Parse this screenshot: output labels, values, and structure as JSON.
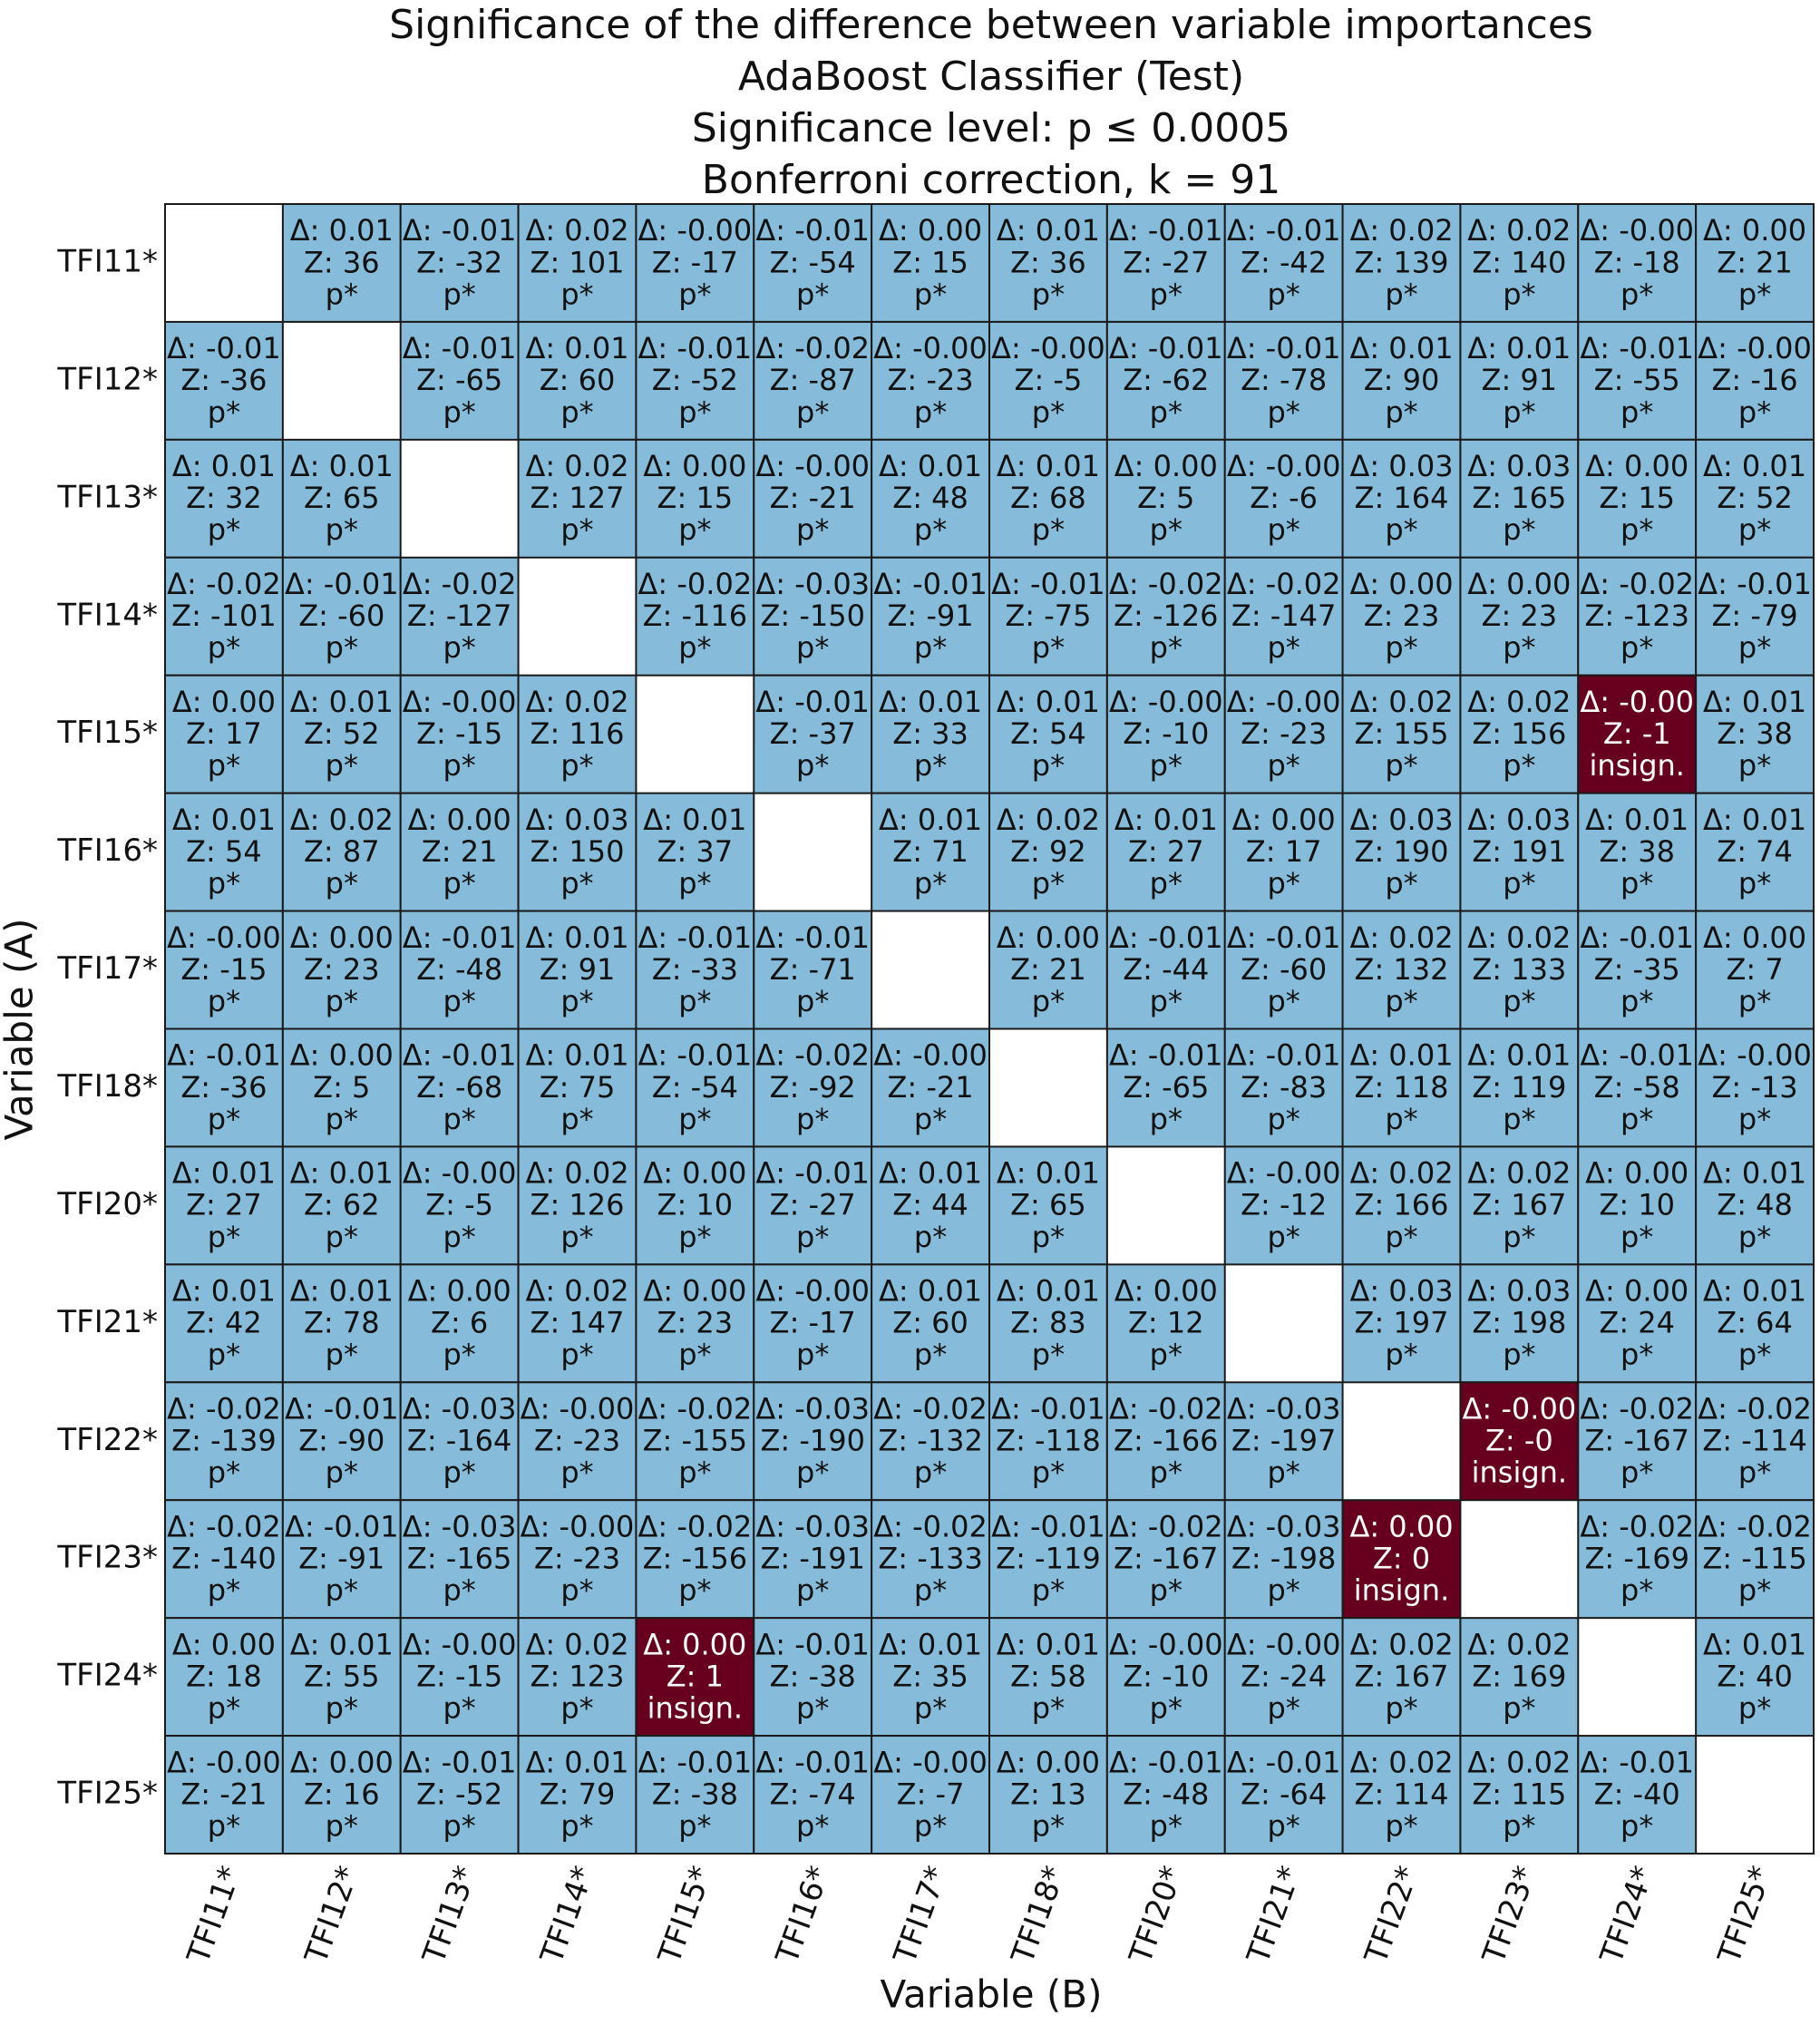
{
  "chart_data": {
    "type": "matrix",
    "title": [
      "Significance of the difference between variable importances",
      "AdaBoost Classifier (Test)",
      "Significance level: p ≤  0.0005",
      "Bonferroni correction, k = 91"
    ],
    "x_label": "Variable (B)",
    "y_label": "Variable (A)",
    "significant_color": "#86bcd9",
    "insignificant_color": "#67001f",
    "rows": [
      "TFI11*",
      "TFI12*",
      "TFI13*",
      "TFI14*",
      "TFI15*",
      "TFI16*",
      "TFI17*",
      "TFI18*",
      "TFI20*",
      "TFI21*",
      "TFI22*",
      "TFI23*",
      "TFI24*",
      "TFI25*"
    ],
    "columns": [
      "TFI11*",
      "TFI12*",
      "TFI13*",
      "TFI14*",
      "TFI15*",
      "TFI16*",
      "TFI17*",
      "TFI18*",
      "TFI20*",
      "TFI21*",
      "TFI22*",
      "TFI23*",
      "TFI24*",
      "TFI25*"
    ],
    "cells": [
      [
        null,
        [
          "Δ: 0.01",
          "Z: 36",
          "p*",
          true
        ],
        [
          "Δ: -0.01",
          "Z: -32",
          "p*",
          true
        ],
        [
          "Δ: 0.02",
          "Z: 101",
          "p*",
          true
        ],
        [
          "Δ: -0.00",
          "Z: -17",
          "p*",
          true
        ],
        [
          "Δ: -0.01",
          "Z: -54",
          "p*",
          true
        ],
        [
          "Δ: 0.00",
          "Z: 15",
          "p*",
          true
        ],
        [
          "Δ: 0.01",
          "Z: 36",
          "p*",
          true
        ],
        [
          "Δ: -0.01",
          "Z: -27",
          "p*",
          true
        ],
        [
          "Δ: -0.01",
          "Z: -42",
          "p*",
          true
        ],
        [
          "Δ: 0.02",
          "Z: 139",
          "p*",
          true
        ],
        [
          "Δ: 0.02",
          "Z: 140",
          "p*",
          true
        ],
        [
          "Δ: -0.00",
          "Z: -18",
          "p*",
          true
        ],
        [
          "Δ: 0.00",
          "Z: 21",
          "p*",
          true
        ]
      ],
      [
        [
          "Δ: -0.01",
          "Z: -36",
          "p*",
          true
        ],
        null,
        [
          "Δ: -0.01",
          "Z: -65",
          "p*",
          true
        ],
        [
          "Δ: 0.01",
          "Z: 60",
          "p*",
          true
        ],
        [
          "Δ: -0.01",
          "Z: -52",
          "p*",
          true
        ],
        [
          "Δ: -0.02",
          "Z: -87",
          "p*",
          true
        ],
        [
          "Δ: -0.00",
          "Z: -23",
          "p*",
          true
        ],
        [
          "Δ: -0.00",
          "Z: -5",
          "p*",
          true
        ],
        [
          "Δ: -0.01",
          "Z: -62",
          "p*",
          true
        ],
        [
          "Δ: -0.01",
          "Z: -78",
          "p*",
          true
        ],
        [
          "Δ: 0.01",
          "Z: 90",
          "p*",
          true
        ],
        [
          "Δ: 0.01",
          "Z: 91",
          "p*",
          true
        ],
        [
          "Δ: -0.01",
          "Z: -55",
          "p*",
          true
        ],
        [
          "Δ: -0.00",
          "Z: -16",
          "p*",
          true
        ]
      ],
      [
        [
          "Δ: 0.01",
          "Z: 32",
          "p*",
          true
        ],
        [
          "Δ: 0.01",
          "Z: 65",
          "p*",
          true
        ],
        null,
        [
          "Δ: 0.02",
          "Z: 127",
          "p*",
          true
        ],
        [
          "Δ: 0.00",
          "Z: 15",
          "p*",
          true
        ],
        [
          "Δ: -0.00",
          "Z: -21",
          "p*",
          true
        ],
        [
          "Δ: 0.01",
          "Z: 48",
          "p*",
          true
        ],
        [
          "Δ: 0.01",
          "Z: 68",
          "p*",
          true
        ],
        [
          "Δ: 0.00",
          "Z: 5",
          "p*",
          true
        ],
        [
          "Δ: -0.00",
          "Z: -6",
          "p*",
          true
        ],
        [
          "Δ: 0.03",
          "Z: 164",
          "p*",
          true
        ],
        [
          "Δ: 0.03",
          "Z: 165",
          "p*",
          true
        ],
        [
          "Δ: 0.00",
          "Z: 15",
          "p*",
          true
        ],
        [
          "Δ: 0.01",
          "Z: 52",
          "p*",
          true
        ]
      ],
      [
        [
          "Δ: -0.02",
          "Z: -101",
          "p*",
          true
        ],
        [
          "Δ: -0.01",
          "Z: -60",
          "p*",
          true
        ],
        [
          "Δ: -0.02",
          "Z: -127",
          "p*",
          true
        ],
        null,
        [
          "Δ: -0.02",
          "Z: -116",
          "p*",
          true
        ],
        [
          "Δ: -0.03",
          "Z: -150",
          "p*",
          true
        ],
        [
          "Δ: -0.01",
          "Z: -91",
          "p*",
          true
        ],
        [
          "Δ: -0.01",
          "Z: -75",
          "p*",
          true
        ],
        [
          "Δ: -0.02",
          "Z: -126",
          "p*",
          true
        ],
        [
          "Δ: -0.02",
          "Z: -147",
          "p*",
          true
        ],
        [
          "Δ: 0.00",
          "Z: 23",
          "p*",
          true
        ],
        [
          "Δ: 0.00",
          "Z: 23",
          "p*",
          true
        ],
        [
          "Δ: -0.02",
          "Z: -123",
          "p*",
          true
        ],
        [
          "Δ: -0.01",
          "Z: -79",
          "p*",
          true
        ]
      ],
      [
        [
          "Δ: 0.00",
          "Z: 17",
          "p*",
          true
        ],
        [
          "Δ: 0.01",
          "Z: 52",
          "p*",
          true
        ],
        [
          "Δ: -0.00",
          "Z: -15",
          "p*",
          true
        ],
        [
          "Δ: 0.02",
          "Z: 116",
          "p*",
          true
        ],
        null,
        [
          "Δ: -0.01",
          "Z: -37",
          "p*",
          true
        ],
        [
          "Δ: 0.01",
          "Z: 33",
          "p*",
          true
        ],
        [
          "Δ: 0.01",
          "Z: 54",
          "p*",
          true
        ],
        [
          "Δ: -0.00",
          "Z: -10",
          "p*",
          true
        ],
        [
          "Δ: -0.00",
          "Z: -23",
          "p*",
          true
        ],
        [
          "Δ: 0.02",
          "Z: 155",
          "p*",
          true
        ],
        [
          "Δ: 0.02",
          "Z: 156",
          "p*",
          true
        ],
        [
          "Δ: -0.00",
          "Z: -1",
          "insign.",
          false
        ],
        [
          "Δ: 0.01",
          "Z: 38",
          "p*",
          true
        ]
      ],
      [
        [
          "Δ: 0.01",
          "Z: 54",
          "p*",
          true
        ],
        [
          "Δ: 0.02",
          "Z: 87",
          "p*",
          true
        ],
        [
          "Δ: 0.00",
          "Z: 21",
          "p*",
          true
        ],
        [
          "Δ: 0.03",
          "Z: 150",
          "p*",
          true
        ],
        [
          "Δ: 0.01",
          "Z: 37",
          "p*",
          true
        ],
        null,
        [
          "Δ: 0.01",
          "Z: 71",
          "p*",
          true
        ],
        [
          "Δ: 0.02",
          "Z: 92",
          "p*",
          true
        ],
        [
          "Δ: 0.01",
          "Z: 27",
          "p*",
          true
        ],
        [
          "Δ: 0.00",
          "Z: 17",
          "p*",
          true
        ],
        [
          "Δ: 0.03",
          "Z: 190",
          "p*",
          true
        ],
        [
          "Δ: 0.03",
          "Z: 191",
          "p*",
          true
        ],
        [
          "Δ: 0.01",
          "Z: 38",
          "p*",
          true
        ],
        [
          "Δ: 0.01",
          "Z: 74",
          "p*",
          true
        ]
      ],
      [
        [
          "Δ: -0.00",
          "Z: -15",
          "p*",
          true
        ],
        [
          "Δ: 0.00",
          "Z: 23",
          "p*",
          true
        ],
        [
          "Δ: -0.01",
          "Z: -48",
          "p*",
          true
        ],
        [
          "Δ: 0.01",
          "Z: 91",
          "p*",
          true
        ],
        [
          "Δ: -0.01",
          "Z: -33",
          "p*",
          true
        ],
        [
          "Δ: -0.01",
          "Z: -71",
          "p*",
          true
        ],
        null,
        [
          "Δ: 0.00",
          "Z: 21",
          "p*",
          true
        ],
        [
          "Δ: -0.01",
          "Z: -44",
          "p*",
          true
        ],
        [
          "Δ: -0.01",
          "Z: -60",
          "p*",
          true
        ],
        [
          "Δ: 0.02",
          "Z: 132",
          "p*",
          true
        ],
        [
          "Δ: 0.02",
          "Z: 133",
          "p*",
          true
        ],
        [
          "Δ: -0.01",
          "Z: -35",
          "p*",
          true
        ],
        [
          "Δ: 0.00",
          "Z: 7",
          "p*",
          true
        ]
      ],
      [
        [
          "Δ: -0.01",
          "Z: -36",
          "p*",
          true
        ],
        [
          "Δ: 0.00",
          "Z: 5",
          "p*",
          true
        ],
        [
          "Δ: -0.01",
          "Z: -68",
          "p*",
          true
        ],
        [
          "Δ: 0.01",
          "Z: 75",
          "p*",
          true
        ],
        [
          "Δ: -0.01",
          "Z: -54",
          "p*",
          true
        ],
        [
          "Δ: -0.02",
          "Z: -92",
          "p*",
          true
        ],
        [
          "Δ: -0.00",
          "Z: -21",
          "p*",
          true
        ],
        null,
        [
          "Δ: -0.01",
          "Z: -65",
          "p*",
          true
        ],
        [
          "Δ: -0.01",
          "Z: -83",
          "p*",
          true
        ],
        [
          "Δ: 0.01",
          "Z: 118",
          "p*",
          true
        ],
        [
          "Δ: 0.01",
          "Z: 119",
          "p*",
          true
        ],
        [
          "Δ: -0.01",
          "Z: -58",
          "p*",
          true
        ],
        [
          "Δ: -0.00",
          "Z: -13",
          "p*",
          true
        ]
      ],
      [
        [
          "Δ: 0.01",
          "Z: 27",
          "p*",
          true
        ],
        [
          "Δ: 0.01",
          "Z: 62",
          "p*",
          true
        ],
        [
          "Δ: -0.00",
          "Z: -5",
          "p*",
          true
        ],
        [
          "Δ: 0.02",
          "Z: 126",
          "p*",
          true
        ],
        [
          "Δ: 0.00",
          "Z: 10",
          "p*",
          true
        ],
        [
          "Δ: -0.01",
          "Z: -27",
          "p*",
          true
        ],
        [
          "Δ: 0.01",
          "Z: 44",
          "p*",
          true
        ],
        [
          "Δ: 0.01",
          "Z: 65",
          "p*",
          true
        ],
        null,
        [
          "Δ: -0.00",
          "Z: -12",
          "p*",
          true
        ],
        [
          "Δ: 0.02",
          "Z: 166",
          "p*",
          true
        ],
        [
          "Δ: 0.02",
          "Z: 167",
          "p*",
          true
        ],
        [
          "Δ: 0.00",
          "Z: 10",
          "p*",
          true
        ],
        [
          "Δ: 0.01",
          "Z: 48",
          "p*",
          true
        ]
      ],
      [
        [
          "Δ: 0.01",
          "Z: 42",
          "p*",
          true
        ],
        [
          "Δ: 0.01",
          "Z: 78",
          "p*",
          true
        ],
        [
          "Δ: 0.00",
          "Z: 6",
          "p*",
          true
        ],
        [
          "Δ: 0.02",
          "Z: 147",
          "p*",
          true
        ],
        [
          "Δ: 0.00",
          "Z: 23",
          "p*",
          true
        ],
        [
          "Δ: -0.00",
          "Z: -17",
          "p*",
          true
        ],
        [
          "Δ: 0.01",
          "Z: 60",
          "p*",
          true
        ],
        [
          "Δ: 0.01",
          "Z: 83",
          "p*",
          true
        ],
        [
          "Δ: 0.00",
          "Z: 12",
          "p*",
          true
        ],
        null,
        [
          "Δ: 0.03",
          "Z: 197",
          "p*",
          true
        ],
        [
          "Δ: 0.03",
          "Z: 198",
          "p*",
          true
        ],
        [
          "Δ: 0.00",
          "Z: 24",
          "p*",
          true
        ],
        [
          "Δ: 0.01",
          "Z: 64",
          "p*",
          true
        ]
      ],
      [
        [
          "Δ: -0.02",
          "Z: -139",
          "p*",
          true
        ],
        [
          "Δ: -0.01",
          "Z: -90",
          "p*",
          true
        ],
        [
          "Δ: -0.03",
          "Z: -164",
          "p*",
          true
        ],
        [
          "Δ: -0.00",
          "Z: -23",
          "p*",
          true
        ],
        [
          "Δ: -0.02",
          "Z: -155",
          "p*",
          true
        ],
        [
          "Δ: -0.03",
          "Z: -190",
          "p*",
          true
        ],
        [
          "Δ: -0.02",
          "Z: -132",
          "p*",
          true
        ],
        [
          "Δ: -0.01",
          "Z: -118",
          "p*",
          true
        ],
        [
          "Δ: -0.02",
          "Z: -166",
          "p*",
          true
        ],
        [
          "Δ: -0.03",
          "Z: -197",
          "p*",
          true
        ],
        null,
        [
          "Δ: -0.00",
          "Z: -0",
          "insign.",
          false
        ],
        [
          "Δ: -0.02",
          "Z: -167",
          "p*",
          true
        ],
        [
          "Δ: -0.02",
          "Z: -114",
          "p*",
          true
        ]
      ],
      [
        [
          "Δ: -0.02",
          "Z: -140",
          "p*",
          true
        ],
        [
          "Δ: -0.01",
          "Z: -91",
          "p*",
          true
        ],
        [
          "Δ: -0.03",
          "Z: -165",
          "p*",
          true
        ],
        [
          "Δ: -0.00",
          "Z: -23",
          "p*",
          true
        ],
        [
          "Δ: -0.02",
          "Z: -156",
          "p*",
          true
        ],
        [
          "Δ: -0.03",
          "Z: -191",
          "p*",
          true
        ],
        [
          "Δ: -0.02",
          "Z: -133",
          "p*",
          true
        ],
        [
          "Δ: -0.01",
          "Z: -119",
          "p*",
          true
        ],
        [
          "Δ: -0.02",
          "Z: -167",
          "p*",
          true
        ],
        [
          "Δ: -0.03",
          "Z: -198",
          "p*",
          true
        ],
        [
          "Δ: 0.00",
          "Z: 0",
          "insign.",
          false
        ],
        null,
        [
          "Δ: -0.02",
          "Z: -169",
          "p*",
          true
        ],
        [
          "Δ: -0.02",
          "Z: -115",
          "p*",
          true
        ]
      ],
      [
        [
          "Δ: 0.00",
          "Z: 18",
          "p*",
          true
        ],
        [
          "Δ: 0.01",
          "Z: 55",
          "p*",
          true
        ],
        [
          "Δ: -0.00",
          "Z: -15",
          "p*",
          true
        ],
        [
          "Δ: 0.02",
          "Z: 123",
          "p*",
          true
        ],
        [
          "Δ: 0.00",
          "Z: 1",
          "insign.",
          false
        ],
        [
          "Δ: -0.01",
          "Z: -38",
          "p*",
          true
        ],
        [
          "Δ: 0.01",
          "Z: 35",
          "p*",
          true
        ],
        [
          "Δ: 0.01",
          "Z: 58",
          "p*",
          true
        ],
        [
          "Δ: -0.00",
          "Z: -10",
          "p*",
          true
        ],
        [
          "Δ: -0.00",
          "Z: -24",
          "p*",
          true
        ],
        [
          "Δ: 0.02",
          "Z: 167",
          "p*",
          true
        ],
        [
          "Δ: 0.02",
          "Z: 169",
          "p*",
          true
        ],
        null,
        [
          "Δ: 0.01",
          "Z: 40",
          "p*",
          true
        ]
      ],
      [
        [
          "Δ: -0.00",
          "Z: -21",
          "p*",
          true
        ],
        [
          "Δ: 0.00",
          "Z: 16",
          "p*",
          true
        ],
        [
          "Δ: -0.01",
          "Z: -52",
          "p*",
          true
        ],
        [
          "Δ: 0.01",
          "Z: 79",
          "p*",
          true
        ],
        [
          "Δ: -0.01",
          "Z: -38",
          "p*",
          true
        ],
        [
          "Δ: -0.01",
          "Z: -74",
          "p*",
          true
        ],
        [
          "Δ: -0.00",
          "Z: -7",
          "p*",
          true
        ],
        [
          "Δ: 0.00",
          "Z: 13",
          "p*",
          true
        ],
        [
          "Δ: -0.01",
          "Z: -48",
          "p*",
          true
        ],
        [
          "Δ: -0.01",
          "Z: -64",
          "p*",
          true
        ],
        [
          "Δ: 0.02",
          "Z: 114",
          "p*",
          true
        ],
        [
          "Δ: 0.02",
          "Z: 115",
          "p*",
          true
        ],
        [
          "Δ: -0.01",
          "Z: -40",
          "p*",
          true
        ],
        null
      ]
    ]
  }
}
